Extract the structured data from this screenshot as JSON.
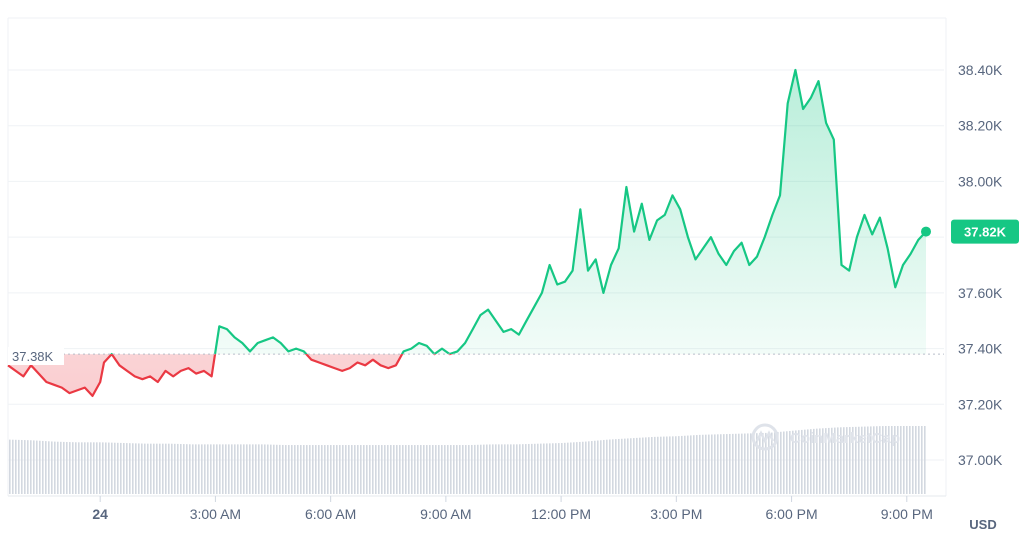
{
  "chart_data": {
    "type": "line",
    "title": "",
    "unit": "USD",
    "watermark": "CoinMarketCap",
    "ylim": [
      36900,
      38500
    ],
    "y_ticks": [
      "38.40K",
      "38.20K",
      "38.00K",
      "37.80K",
      "37.60K",
      "37.40K",
      "37.20K",
      "37.00K"
    ],
    "y_tick_values": [
      38400,
      38200,
      38000,
      37800,
      37600,
      37400,
      37200,
      37000
    ],
    "x_ticks": [
      "24",
      "3:00 AM",
      "6:00 AM",
      "9:00 AM",
      "12:00 PM",
      "3:00 PM",
      "6:00 PM",
      "9:00 PM"
    ],
    "x_tick_hours": [
      0,
      3,
      6,
      9,
      12,
      15,
      18,
      21
    ],
    "x_range_hours": [
      -2.4,
      21.5
    ],
    "reference": {
      "label": "37.38K",
      "value": 37380
    },
    "current": {
      "label": "37.82K",
      "value": 37820
    },
    "colors": {
      "up": "#16c784",
      "down": "#ea3943",
      "volume": "#d3d8e0"
    },
    "series": [
      {
        "values": [
          [
            -2.4,
            37340
          ],
          [
            -2.2,
            37320
          ],
          [
            -2.0,
            37300
          ],
          [
            -1.8,
            37340
          ],
          [
            -1.6,
            37310
          ],
          [
            -1.4,
            37280
          ],
          [
            -1.2,
            37270
          ],
          [
            -1.0,
            37260
          ],
          [
            -0.8,
            37240
          ],
          [
            -0.6,
            37250
          ],
          [
            -0.4,
            37260
          ],
          [
            -0.2,
            37230
          ],
          [
            0.0,
            37280
          ],
          [
            0.1,
            37350
          ],
          [
            0.3,
            37380
          ],
          [
            0.5,
            37340
          ],
          [
            0.7,
            37320
          ],
          [
            0.9,
            37300
          ],
          [
            1.1,
            37290
          ],
          [
            1.3,
            37300
          ],
          [
            1.5,
            37280
          ],
          [
            1.7,
            37320
          ],
          [
            1.9,
            37300
          ],
          [
            2.1,
            37320
          ],
          [
            2.3,
            37330
          ],
          [
            2.5,
            37310
          ],
          [
            2.7,
            37320
          ],
          [
            2.9,
            37300
          ],
          [
            3.1,
            37480
          ],
          [
            3.3,
            37470
          ],
          [
            3.5,
            37440
          ],
          [
            3.7,
            37420
          ],
          [
            3.9,
            37390
          ],
          [
            4.1,
            37420
          ],
          [
            4.3,
            37430
          ],
          [
            4.5,
            37440
          ],
          [
            4.7,
            37420
          ],
          [
            4.9,
            37390
          ],
          [
            5.1,
            37400
          ],
          [
            5.3,
            37390
          ],
          [
            5.5,
            37360
          ],
          [
            5.7,
            37350
          ],
          [
            5.9,
            37340
          ],
          [
            6.1,
            37330
          ],
          [
            6.3,
            37320
          ],
          [
            6.5,
            37330
          ],
          [
            6.7,
            37350
          ],
          [
            6.9,
            37340
          ],
          [
            7.1,
            37360
          ],
          [
            7.3,
            37340
          ],
          [
            7.5,
            37330
          ],
          [
            7.7,
            37340
          ],
          [
            7.9,
            37390
          ],
          [
            8.1,
            37400
          ],
          [
            8.3,
            37420
          ],
          [
            8.5,
            37410
          ],
          [
            8.7,
            37380
          ],
          [
            8.9,
            37400
          ],
          [
            9.1,
            37380
          ],
          [
            9.3,
            37390
          ],
          [
            9.5,
            37420
          ],
          [
            9.7,
            37470
          ],
          [
            9.9,
            37520
          ],
          [
            10.1,
            37540
          ],
          [
            10.3,
            37500
          ],
          [
            10.5,
            37460
          ],
          [
            10.7,
            37470
          ],
          [
            10.9,
            37450
          ],
          [
            11.1,
            37500
          ],
          [
            11.3,
            37550
          ],
          [
            11.5,
            37600
          ],
          [
            11.7,
            37700
          ],
          [
            11.9,
            37630
          ],
          [
            12.1,
            37640
          ],
          [
            12.3,
            37680
          ],
          [
            12.5,
            37900
          ],
          [
            12.7,
            37680
          ],
          [
            12.9,
            37720
          ],
          [
            13.1,
            37600
          ],
          [
            13.3,
            37700
          ],
          [
            13.5,
            37760
          ],
          [
            13.7,
            37980
          ],
          [
            13.9,
            37820
          ],
          [
            14.1,
            37920
          ],
          [
            14.3,
            37790
          ],
          [
            14.5,
            37860
          ],
          [
            14.7,
            37880
          ],
          [
            14.9,
            37950
          ],
          [
            15.1,
            37900
          ],
          [
            15.3,
            37800
          ],
          [
            15.5,
            37720
          ],
          [
            15.7,
            37760
          ],
          [
            15.9,
            37800
          ],
          [
            16.1,
            37740
          ],
          [
            16.3,
            37700
          ],
          [
            16.5,
            37750
          ],
          [
            16.7,
            37780
          ],
          [
            16.9,
            37700
          ],
          [
            17.1,
            37730
          ],
          [
            17.3,
            37800
          ],
          [
            17.5,
            37880
          ],
          [
            17.7,
            37950
          ],
          [
            17.9,
            38280
          ],
          [
            18.1,
            38400
          ],
          [
            18.3,
            38260
          ],
          [
            18.5,
            38300
          ],
          [
            18.7,
            38360
          ],
          [
            18.9,
            38210
          ],
          [
            19.1,
            38150
          ],
          [
            19.3,
            37700
          ],
          [
            19.5,
            37680
          ],
          [
            19.7,
            37800
          ],
          [
            19.9,
            37880
          ],
          [
            20.1,
            37810
          ],
          [
            20.3,
            37870
          ],
          [
            20.5,
            37760
          ],
          [
            20.7,
            37620
          ],
          [
            20.9,
            37700
          ],
          [
            21.1,
            37740
          ],
          [
            21.3,
            37790
          ],
          [
            21.5,
            37820
          ]
        ]
      }
    ],
    "volume": [
      [
        -2.4,
        0.8
      ],
      [
        -1.8,
        0.79
      ],
      [
        -1.2,
        0.77
      ],
      [
        -0.6,
        0.76
      ],
      [
        0.0,
        0.76
      ],
      [
        0.6,
        0.75
      ],
      [
        1.2,
        0.74
      ],
      [
        1.8,
        0.74
      ],
      [
        2.4,
        0.73
      ],
      [
        3.0,
        0.73
      ],
      [
        3.6,
        0.73
      ],
      [
        4.2,
        0.73
      ],
      [
        4.8,
        0.72
      ],
      [
        5.4,
        0.72
      ],
      [
        6.0,
        0.72
      ],
      [
        6.6,
        0.72
      ],
      [
        7.2,
        0.72
      ],
      [
        7.8,
        0.72
      ],
      [
        8.4,
        0.72
      ],
      [
        9.0,
        0.72
      ],
      [
        9.6,
        0.72
      ],
      [
        10.2,
        0.73
      ],
      [
        10.8,
        0.73
      ],
      [
        11.4,
        0.74
      ],
      [
        12.0,
        0.75
      ],
      [
        12.6,
        0.77
      ],
      [
        13.2,
        0.8
      ],
      [
        13.8,
        0.82
      ],
      [
        14.4,
        0.84
      ],
      [
        15.0,
        0.85
      ],
      [
        15.6,
        0.87
      ],
      [
        16.2,
        0.88
      ],
      [
        16.8,
        0.89
      ],
      [
        17.4,
        0.9
      ],
      [
        18.0,
        0.93
      ],
      [
        18.6,
        0.96
      ],
      [
        19.2,
        0.98
      ],
      [
        19.8,
        0.99
      ],
      [
        20.4,
        1.0
      ],
      [
        21.0,
        1.0
      ],
      [
        21.5,
        1.0
      ]
    ]
  }
}
